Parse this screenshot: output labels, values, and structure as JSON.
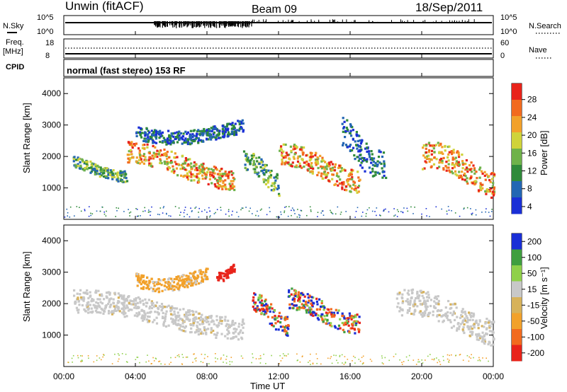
{
  "header": {
    "station": "Unwin (fitACF)",
    "beam": "Beam 09",
    "date": "18/Sep/2011"
  },
  "noise_panel": {
    "left_label": "N.Sky",
    "right_label": "N.Search",
    "left_ticks": [
      "10^5",
      "10^0"
    ],
    "right_ticks": [
      "10^5",
      "10^0"
    ]
  },
  "freq_panel": {
    "left_label_top": "Freq.",
    "left_label_unit": "[MHz]",
    "right_label": "Nave",
    "left_ticks": [
      "18",
      "8"
    ],
    "right_ticks": [
      "60",
      "0"
    ]
  },
  "cpid_panel": {
    "label": "CPID",
    "mode_text": "normal (fast stereo) 153 RF"
  },
  "colors": {
    "power": [
      "#1a2fd6",
      "#2366b3",
      "#2f8a3a",
      "#6fb24a",
      "#cfd33a",
      "#f2a12a",
      "#f26a1e",
      "#e8231a"
    ],
    "velocity": [
      "#e8231a",
      "#f26a1e",
      "#f2a12a",
      "#d7b25a",
      "#c8c8c8",
      "#8fd04a",
      "#3f9e3f",
      "#1a2fd6"
    ]
  },
  "chart_data": [
    {
      "type": "heatmap",
      "title": "",
      "ylabel": "Slant Range [km]",
      "xlabel": "Time UT",
      "ylim": [
        0,
        4500
      ],
      "xlim": [
        "00:00",
        "24:00"
      ],
      "y_ticks": [
        "4000",
        "3000",
        "2000",
        "1000"
      ],
      "x_ticks": [
        "00:00",
        "04:00",
        "08:00",
        "12:00",
        "16:00",
        "20:00",
        "00:00"
      ],
      "colorbar": {
        "label": "Power [dB]",
        "ticks": [
          "28",
          "24",
          "20",
          "16",
          "12",
          "8",
          "4"
        ]
      },
      "bands": [
        {
          "t0": 0.5,
          "t1": 3.5,
          "r0": 1300,
          "r1": 1950,
          "level": "mid"
        },
        {
          "t0": 3.5,
          "t1": 9.5,
          "r0": 1100,
          "r1": 2350,
          "level": "high"
        },
        {
          "t0": 4.0,
          "t1": 10.0,
          "r0": 2500,
          "r1": 3300,
          "level": "low"
        },
        {
          "t0": 10.0,
          "t1": 12.0,
          "r0": 900,
          "r1": 2100,
          "level": "mid"
        },
        {
          "t0": 12.0,
          "t1": 16.5,
          "r0": 1000,
          "r1": 2300,
          "level": "high"
        },
        {
          "t0": 15.5,
          "t1": 18.0,
          "r0": 1500,
          "r1": 3200,
          "level": "low"
        },
        {
          "t0": 20.0,
          "t1": 24.0,
          "r0": 800,
          "r1": 2300,
          "level": "high"
        }
      ]
    },
    {
      "type": "heatmap",
      "title": "",
      "ylabel": "Slant Range [km]",
      "xlabel": "Time UT",
      "ylim": [
        0,
        4500
      ],
      "xlim": [
        "00:00",
        "24:00"
      ],
      "y_ticks": [
        "4000",
        "3000",
        "2000",
        "1000"
      ],
      "x_ticks": [
        "00:00",
        "04:00",
        "08:00",
        "12:00",
        "16:00",
        "20:00",
        "00:00"
      ],
      "colorbar": {
        "label": "Velocity [m s⁻¹]",
        "ticks": [
          "200",
          "100",
          "50",
          "15",
          "-15",
          "-50",
          "-100",
          "-200"
        ]
      },
      "bands": [
        {
          "t0": 0.5,
          "t1": 10.0,
          "r0": 1000,
          "r1": 2300,
          "level": "zero"
        },
        {
          "t0": 4.0,
          "t1": 8.0,
          "r0": 2500,
          "r1": 3300,
          "level": "neg-small"
        },
        {
          "t0": 8.5,
          "t1": 9.5,
          "r0": 2800,
          "r1": 3300,
          "level": "neg-large"
        },
        {
          "t0": 10.5,
          "t1": 12.5,
          "r0": 1100,
          "r1": 2300,
          "level": "mixed"
        },
        {
          "t0": 12.5,
          "t1": 16.5,
          "r0": 1200,
          "r1": 2400,
          "level": "mixed"
        },
        {
          "t0": 18.5,
          "t1": 24.0,
          "r0": 800,
          "r1": 2300,
          "level": "zero"
        }
      ]
    }
  ]
}
